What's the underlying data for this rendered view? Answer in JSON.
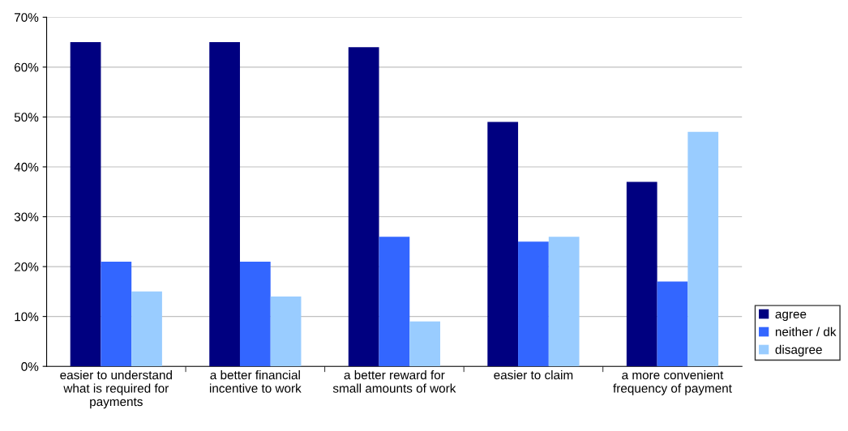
{
  "chart_data": {
    "type": "bar",
    "categories": [
      "easier to understand what is required for payments",
      "a better financial incentive to work",
      "a better reward for small amounts of work",
      "easier to claim",
      "a more convenient frequency of payment"
    ],
    "series": [
      {
        "name": "agree",
        "color": "#000080",
        "values": [
          65,
          65,
          64,
          49,
          37
        ]
      },
      {
        "name": "neither / dk",
        "color": "#3366ff",
        "values": [
          21,
          21,
          26,
          25,
          17
        ]
      },
      {
        "name": "disagree",
        "color": "#99ccff",
        "values": [
          15,
          14,
          9,
          26,
          47
        ]
      }
    ],
    "ylim": [
      0,
      70
    ],
    "yticks": [
      {
        "value": 0,
        "label": "0%"
      },
      {
        "value": 10,
        "label": "10%"
      },
      {
        "value": 20,
        "label": "20%"
      },
      {
        "value": 30,
        "label": "30%"
      },
      {
        "value": 40,
        "label": "40%"
      },
      {
        "value": 50,
        "label": "50%"
      },
      {
        "value": 60,
        "label": "60%"
      },
      {
        "value": 70,
        "label": "70%"
      }
    ],
    "grid": "y",
    "legend": "bottom right"
  }
}
